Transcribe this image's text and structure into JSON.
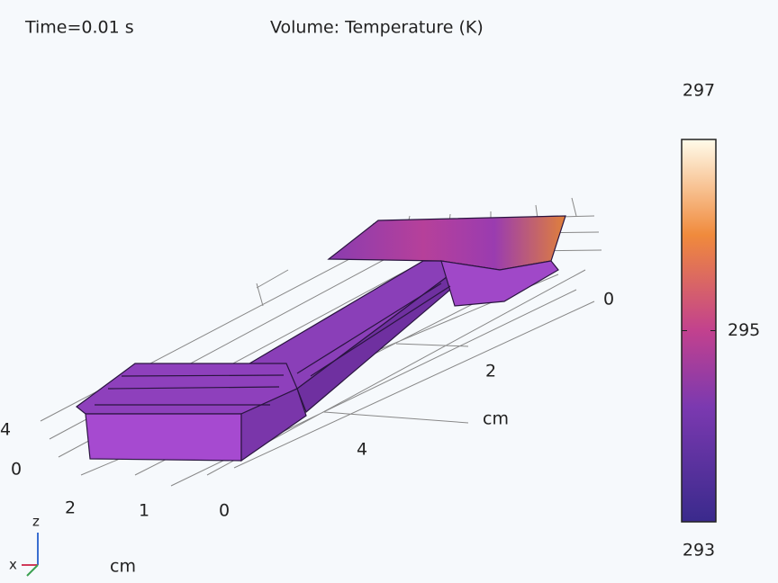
{
  "header": {
    "time": "Time=0.01 s",
    "title": "Volume: Temperature (K)"
  },
  "colorbar": {
    "range": [
      293,
      297
    ],
    "ticks": [
      293,
      295,
      297
    ]
  },
  "axes": {
    "right": {
      "labels": [
        "0",
        "2",
        "4"
      ],
      "unit": "cm"
    },
    "bottom": {
      "labels": [
        "2",
        "1",
        "0"
      ],
      "unit": "cm"
    },
    "left": {
      "labels": [
        "0",
        "4"
      ]
    },
    "triad": {
      "z": "z",
      "x": "x"
    }
  }
}
